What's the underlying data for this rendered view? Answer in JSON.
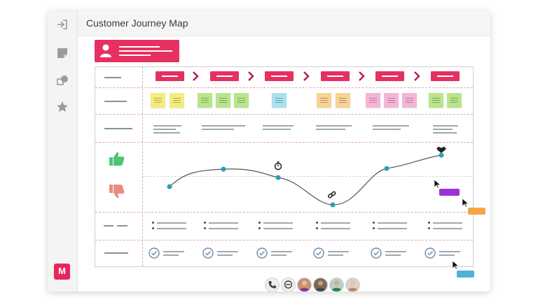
{
  "window": {
    "title": "Customer Journey Map"
  },
  "sidebar": {
    "icons": [
      "exit-icon",
      "sticky-note-icon",
      "shapes-icon",
      "star-icon"
    ],
    "logo_text": "M"
  },
  "journey": {
    "stages_count": 6,
    "emotion": {
      "positive_icon": "thumbs-up-icon",
      "negative_icon": "thumbs-down-icon"
    }
  },
  "colors": {
    "brand": "#e6305f",
    "sticky_yellow": "#f4ec7c",
    "sticky_green": "#b9e58a",
    "sticky_blue": "#a9e1ee",
    "sticky_orange": "#f8d393",
    "sticky_pink": "#f5b5d6",
    "curve_point": "#2aa0b8",
    "thumbs_up": "#4fc477",
    "thumbs_down": "#e98c86",
    "tag_purple": "#9b32d8",
    "tag_orange": "#f7a348",
    "tag_blue": "#4fb2d8"
  }
}
